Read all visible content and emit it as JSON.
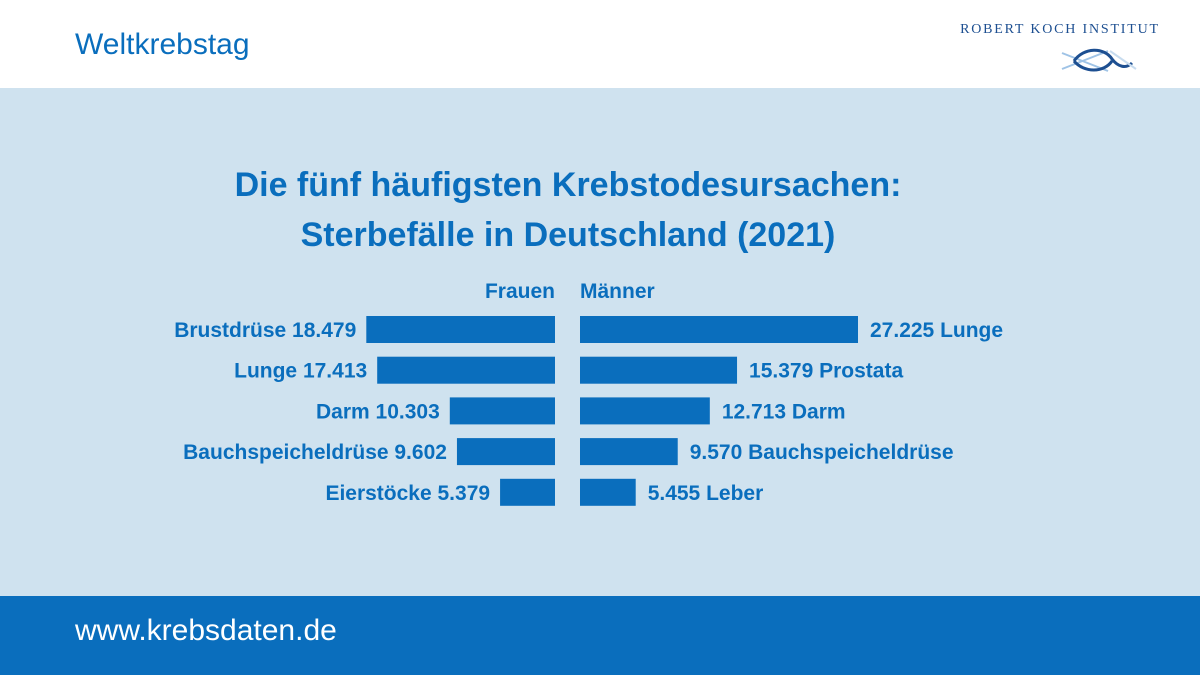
{
  "header": {
    "title": "Weltkrebstag",
    "logo_text": "ROBERT KOCH INSTITUT"
  },
  "colors": {
    "accent": "#0a6ebd",
    "panel": "#cfe2ef",
    "logo_blue": "#1d4f91"
  },
  "footer": {
    "url": "www.krebsdaten.de"
  },
  "chart_data": {
    "type": "bar",
    "title_line1": "Die fünf häufigsten Krebstodesursachen:",
    "title_line2": "Sterbefälle in Deutschland (2021)",
    "series": [
      {
        "name": "Frauen",
        "categories": [
          "Brustdrüse",
          "Lunge",
          "Darm",
          "Bauchspeicheldrüse",
          "Eierstöcke"
        ],
        "values": [
          18479,
          17413,
          10303,
          9602,
          5379
        ],
        "labels": [
          "Brustdrüse 18.479",
          "Lunge 17.413",
          "Darm 10.303",
          "Bauchspeicheldrüse 9.602",
          "Eierstöcke 5.379"
        ]
      },
      {
        "name": "Männer",
        "categories": [
          "Lunge",
          "Prostata",
          "Darm",
          "Bauchspeicheldrüse",
          "Leber"
        ],
        "values": [
          27225,
          15379,
          12713,
          9570,
          5455
        ],
        "labels": [
          "27.225 Lunge",
          "15.379 Prostata",
          "12.713 Darm",
          "9.570 Bauchspeicheldrüse",
          "5.455 Leber"
        ]
      }
    ],
    "legend_placement": "top, above bars",
    "grid": false
  }
}
